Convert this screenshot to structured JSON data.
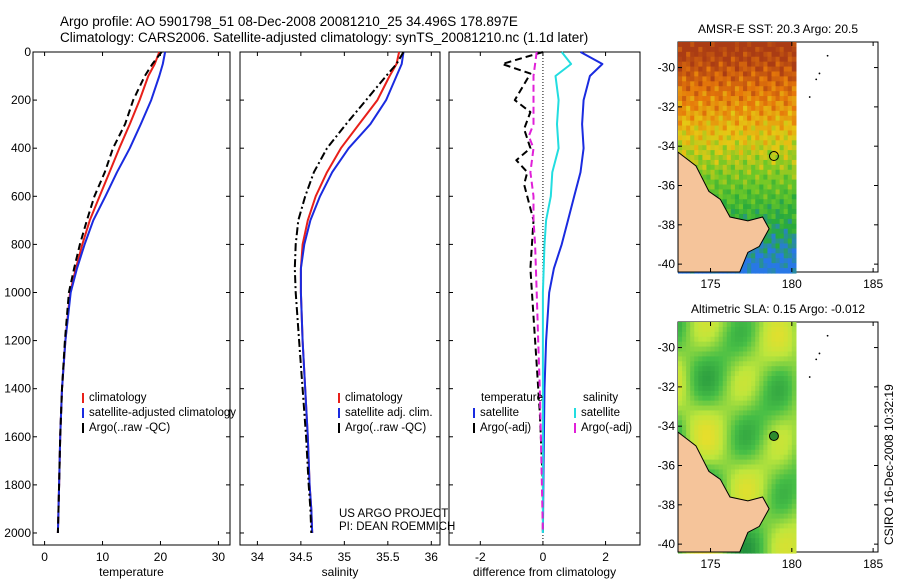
{
  "header": {
    "line1": "Argo profile: AO 5901798_51 08-Dec-2008 20081210_25 34.496S 178.897E",
    "line2": "Climatology: CARS2006. Satellite-adjusted climatology: synTS_20081210.nc (1.1d later)"
  },
  "side_stamp": "CSIRO 16-Dec-2008 10:32:19",
  "credit": {
    "line1": "US ARGO PROJECT",
    "line2": "PI: DEAN ROEMMICH"
  },
  "colors": {
    "climatology": "#e8201a",
    "satellite": "#1a2be0",
    "argo": "#000000",
    "sal_satellite": "#22dde0",
    "sal_argo": "#e020d8",
    "land": "#f5c49a"
  },
  "chart_data": [
    {
      "type": "line",
      "xlabel": "temperature",
      "xlim": [
        -2,
        32
      ],
      "ylim": [
        0,
        2050
      ],
      "yticks": [
        0,
        200,
        400,
        600,
        800,
        1000,
        1200,
        1400,
        1600,
        1800,
        2000
      ],
      "xticks": [
        0,
        10,
        20,
        30
      ],
      "legend": [
        "climatology",
        "satellite-adjusted climatology",
        "Argo(..raw -QC)"
      ],
      "series": [
        {
          "name": "climatology",
          "style": "solid",
          "color": "#e8201a",
          "x": [
            19.8,
            19.0,
            17.9,
            16.4,
            14.7,
            12.9,
            11.2,
            9.5,
            7.8,
            6.5,
            5.4,
            4.4,
            3.6,
            3.0,
            2.7,
            2.5,
            2.4,
            2.3
          ],
          "y": [
            0,
            50,
            100,
            200,
            300,
            400,
            500,
            600,
            700,
            800,
            900,
            1000,
            1200,
            1400,
            1600,
            1800,
            1900,
            2000
          ]
        },
        {
          "name": "satellite-adjusted climatology",
          "style": "solid",
          "color": "#1a2be0",
          "x": [
            20.8,
            20.4,
            19.8,
            18.4,
            16.6,
            14.7,
            12.5,
            10.5,
            8.4,
            6.9,
            5.6,
            4.5,
            3.6,
            3.0,
            2.7,
            2.5,
            2.4,
            2.3
          ],
          "y": [
            0,
            50,
            100,
            200,
            300,
            400,
            500,
            600,
            700,
            800,
            900,
            1000,
            1200,
            1400,
            1600,
            1800,
            1900,
            2000
          ]
        },
        {
          "name": "Argo(..raw -QC)",
          "style": "dash",
          "color": "#000000",
          "x": [
            20.2,
            18.6,
            17.3,
            15.3,
            13.9,
            11.8,
            10.4,
            8.6,
            7.3,
            6.1,
            5.1,
            4.2,
            3.5,
            3.0,
            2.7,
            2.5,
            2.4,
            2.3
          ],
          "y": [
            0,
            50,
            100,
            200,
            300,
            400,
            500,
            600,
            700,
            800,
            900,
            1000,
            1200,
            1400,
            1600,
            1800,
            1900,
            2000
          ]
        }
      ]
    },
    {
      "type": "line",
      "xlabel": "salinity",
      "xlim": [
        33.8,
        36.1
      ],
      "ylim": [
        0,
        2050
      ],
      "xticks": [
        34,
        34.5,
        35,
        35.5,
        36
      ],
      "legend": [
        "climatology",
        "satellite adj. clim.",
        "Argo(..raw -QC)"
      ],
      "series": [
        {
          "name": "climatology",
          "style": "solid",
          "color": "#e8201a",
          "x": [
            35.63,
            35.6,
            35.52,
            35.38,
            35.17,
            34.96,
            34.8,
            34.67,
            34.58,
            34.52,
            34.5,
            34.5,
            34.52,
            34.55,
            34.58,
            34.6,
            34.62,
            34.63
          ],
          "y": [
            0,
            50,
            100,
            200,
            300,
            400,
            500,
            600,
            700,
            800,
            900,
            1000,
            1200,
            1400,
            1600,
            1800,
            1900,
            2000
          ]
        },
        {
          "name": "satellite adj. clim.",
          "style": "solid",
          "color": "#1a2be0",
          "x": [
            35.68,
            35.66,
            35.6,
            35.48,
            35.3,
            35.05,
            34.86,
            34.72,
            34.61,
            34.54,
            34.5,
            34.5,
            34.52,
            34.55,
            34.58,
            34.6,
            34.62,
            34.63
          ],
          "y": [
            0,
            50,
            100,
            200,
            300,
            400,
            500,
            600,
            700,
            800,
            900,
            1000,
            1200,
            1400,
            1600,
            1800,
            1900,
            2000
          ]
        },
        {
          "name": "Argo(..raw -QC)",
          "style": "dashdot",
          "color": "#000000",
          "x": [
            35.68,
            35.6,
            35.48,
            35.25,
            35.02,
            34.8,
            34.65,
            34.55,
            34.47,
            34.44,
            34.43,
            34.44,
            34.48,
            34.52,
            34.56,
            34.59,
            34.61,
            34.62
          ],
          "y": [
            0,
            50,
            100,
            200,
            300,
            400,
            500,
            600,
            700,
            800,
            900,
            1000,
            1200,
            1400,
            1600,
            1800,
            1900,
            2000
          ]
        }
      ]
    },
    {
      "type": "line",
      "xlabel": "difference from climatology",
      "xlim": [
        -3,
        3.1
      ],
      "ylim": [
        0,
        2050
      ],
      "xticks": [
        -2,
        0,
        2
      ],
      "legend_left_title": "temperature",
      "legend_right_title": "salinity",
      "legend_left": [
        "satellite",
        "Argo(-adj)"
      ],
      "legend_right": [
        "satellite",
        "Argo(-adj)"
      ],
      "series": [
        {
          "name": "temperature satellite",
          "style": "solid",
          "color": "#1a2be0",
          "x": [
            1.2,
            1.9,
            1.5,
            1.3,
            1.25,
            1.3,
            1.2,
            1.0,
            0.8,
            0.6,
            0.35,
            0.2,
            0.1,
            0.05,
            0.02,
            0.0
          ],
          "y": [
            0,
            50,
            100,
            200,
            300,
            400,
            500,
            600,
            700,
            800,
            900,
            1000,
            1200,
            1400,
            1700,
            2000
          ]
        },
        {
          "name": "temperature Argo(-adj)",
          "style": "dash",
          "color": "#000000",
          "x": [
            0.0,
            -1.3,
            -0.4,
            -0.9,
            -0.4,
            -0.6,
            -0.4,
            -0.85,
            -0.5,
            -0.6,
            -0.3,
            -0.4,
            -0.3,
            -0.2,
            -0.1,
            0.0,
            0.0
          ],
          "y": [
            0,
            50,
            90,
            200,
            250,
            320,
            400,
            450,
            500,
            550,
            700,
            900,
            1100,
            1300,
            1500,
            1800,
            2000
          ]
        },
        {
          "name": "salinity satellite",
          "style": "solid",
          "color": "#22dde0",
          "x": [
            0.6,
            0.9,
            0.4,
            0.5,
            0.45,
            0.5,
            0.3,
            0.25,
            0.1,
            0.05,
            0.0,
            0.0,
            0.0,
            0.0,
            0.0
          ],
          "y": [
            0,
            50,
            100,
            200,
            300,
            400,
            500,
            600,
            700,
            800,
            1000,
            1200,
            1400,
            1700,
            2000
          ]
        },
        {
          "name": "salinity Argo(-adj)",
          "style": "dash",
          "color": "#e020d8",
          "x": [
            -0.2,
            -0.3,
            -0.3,
            -0.3,
            -0.45,
            -0.3,
            -0.4,
            -0.3,
            -0.3,
            -0.25,
            -0.2,
            -0.15,
            -0.1,
            -0.05,
            0.0
          ],
          "y": [
            0,
            100,
            200,
            300,
            350,
            400,
            500,
            600,
            700,
            800,
            1000,
            1200,
            1400,
            1700,
            2000
          ]
        }
      ]
    }
  ],
  "maps": [
    {
      "title": "AMSR-E SST: 20.3 Argo: 20.5",
      "xticks": [
        175,
        180,
        185
      ],
      "yticks": [
        -30,
        -32,
        -34,
        -36,
        -38,
        -40
      ]
    },
    {
      "title": "Altimetric SLA: 0.15 Argo: -0.012",
      "xticks": [
        175,
        180,
        185
      ],
      "yticks": [
        -30,
        -32,
        -34,
        -36,
        -38,
        -40
      ]
    }
  ]
}
